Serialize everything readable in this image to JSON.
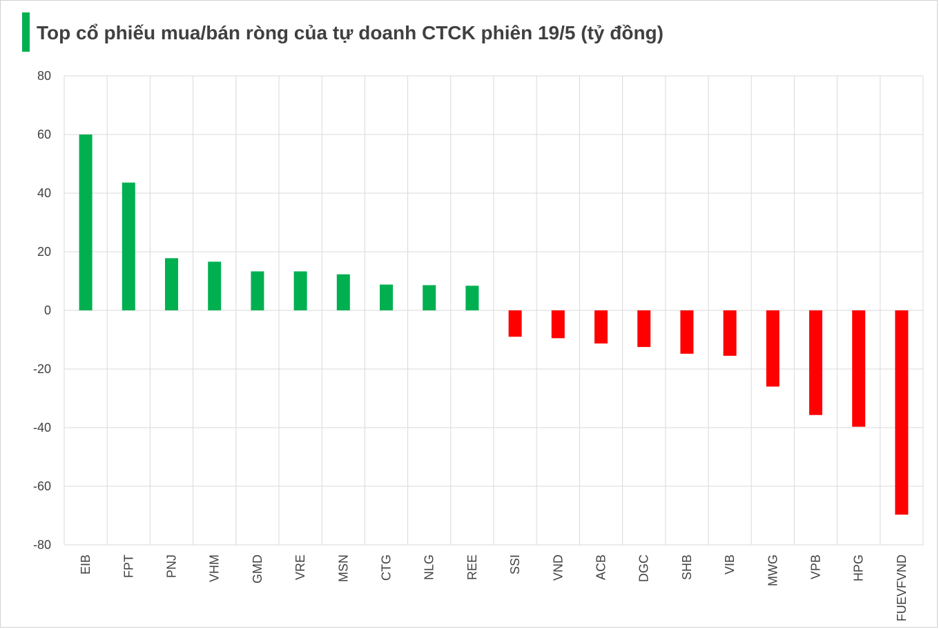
{
  "chart_data": {
    "type": "bar",
    "title": "Top cổ phiếu mua/bán ròng của tự doanh CTCK phiên 19/5 (tỷ đồng)",
    "categories": [
      "EIB",
      "FPT",
      "PNJ",
      "VHM",
      "GMD",
      "VRE",
      "MSN",
      "CTG",
      "NLG",
      "REE",
      "SSI",
      "VND",
      "ACB",
      "DGC",
      "SHB",
      "VIB",
      "MWG",
      "VPB",
      "HPG",
      "FUEVFVND"
    ],
    "values": [
      60,
      43.6,
      17.8,
      16.6,
      13.3,
      13.3,
      12.3,
      8.8,
      8.6,
      8.4,
      -9,
      -9.5,
      -11.3,
      -12.5,
      -14.8,
      -15.5,
      -26,
      -35.7,
      -39.7,
      -69.7
    ],
    "ylim": [
      -80,
      80
    ],
    "yticks": [
      80,
      60,
      40,
      20,
      0,
      -20,
      -40,
      -60,
      -80
    ],
    "grid": true,
    "xlabel": "",
    "ylabel": "",
    "colors": {
      "positive": "#00b050",
      "negative": "#ff0000",
      "accent": "#00b050"
    }
  }
}
